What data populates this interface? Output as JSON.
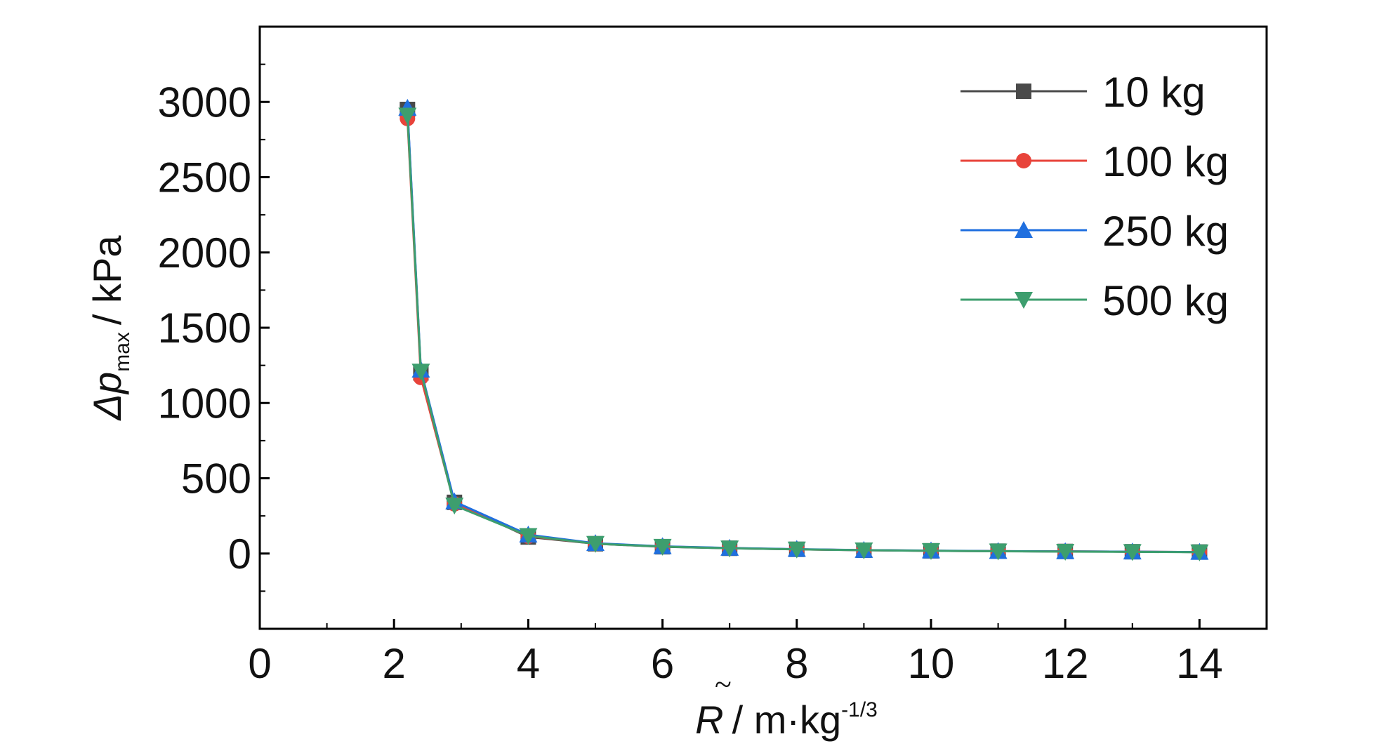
{
  "chart_data": {
    "type": "line",
    "x_axis": {
      "label_symbol": "R",
      "label_unit": "/ m·kg",
      "label_exponent": "-1/3",
      "range": [
        0,
        15
      ],
      "ticks": [
        "0",
        "2",
        "4",
        "6",
        "8",
        "10",
        "12",
        "14"
      ]
    },
    "y_axis": {
      "label_prefix": "Δp",
      "label_subscript": "max",
      "label_unit": "/ kPa",
      "range": [
        -500,
        3500
      ],
      "ticks": [
        "0",
        "500",
        "1000",
        "1500",
        "2000",
        "2500",
        "3000"
      ]
    },
    "grid": false,
    "legend_position": "top-right",
    "series": [
      {
        "name": "10 kg",
        "color": "#4a4a4a",
        "marker": "square",
        "x": [
          2.2,
          2.4,
          2.9,
          4.0,
          5.0,
          6.0,
          7.0,
          8.0,
          9.0,
          10.0,
          11.0,
          12.0,
          13.0,
          14.0
        ],
        "y": [
          2950,
          1200,
          340,
          110,
          65,
          45,
          35,
          28,
          22,
          18,
          16,
          14,
          12,
          10
        ]
      },
      {
        "name": "100 kg",
        "color": "#e8433a",
        "marker": "circle",
        "x": [
          2.2,
          2.4,
          2.9,
          4.0,
          5.0,
          6.0,
          7.0,
          8.0,
          9.0,
          10.0,
          11.0,
          12.0,
          13.0,
          14.0
        ],
        "y": [
          2890,
          1170,
          330,
          115,
          66,
          47,
          36,
          28,
          23,
          18,
          16,
          14,
          12,
          10
        ]
      },
      {
        "name": "250 kg",
        "color": "#1f6fdf",
        "marker": "triangle-up",
        "x": [
          2.2,
          2.4,
          2.9,
          4.0,
          5.0,
          6.0,
          7.0,
          8.0,
          9.0,
          10.0,
          11.0,
          12.0,
          13.0,
          14.0
        ],
        "y": [
          2960,
          1220,
          345,
          125,
          68,
          48,
          37,
          29,
          23,
          19,
          16,
          14,
          12,
          10
        ]
      },
      {
        "name": "500 kg",
        "color": "#3d9e6e",
        "marker": "triangle-down",
        "x": [
          2.2,
          2.4,
          2.9,
          4.0,
          5.0,
          6.0,
          7.0,
          8.0,
          9.0,
          10.0,
          11.0,
          12.0,
          13.0,
          14.0
        ],
        "y": [
          2910,
          1210,
          320,
          118,
          65,
          46,
          35,
          28,
          22,
          18,
          15,
          13,
          11,
          9
        ]
      }
    ]
  }
}
